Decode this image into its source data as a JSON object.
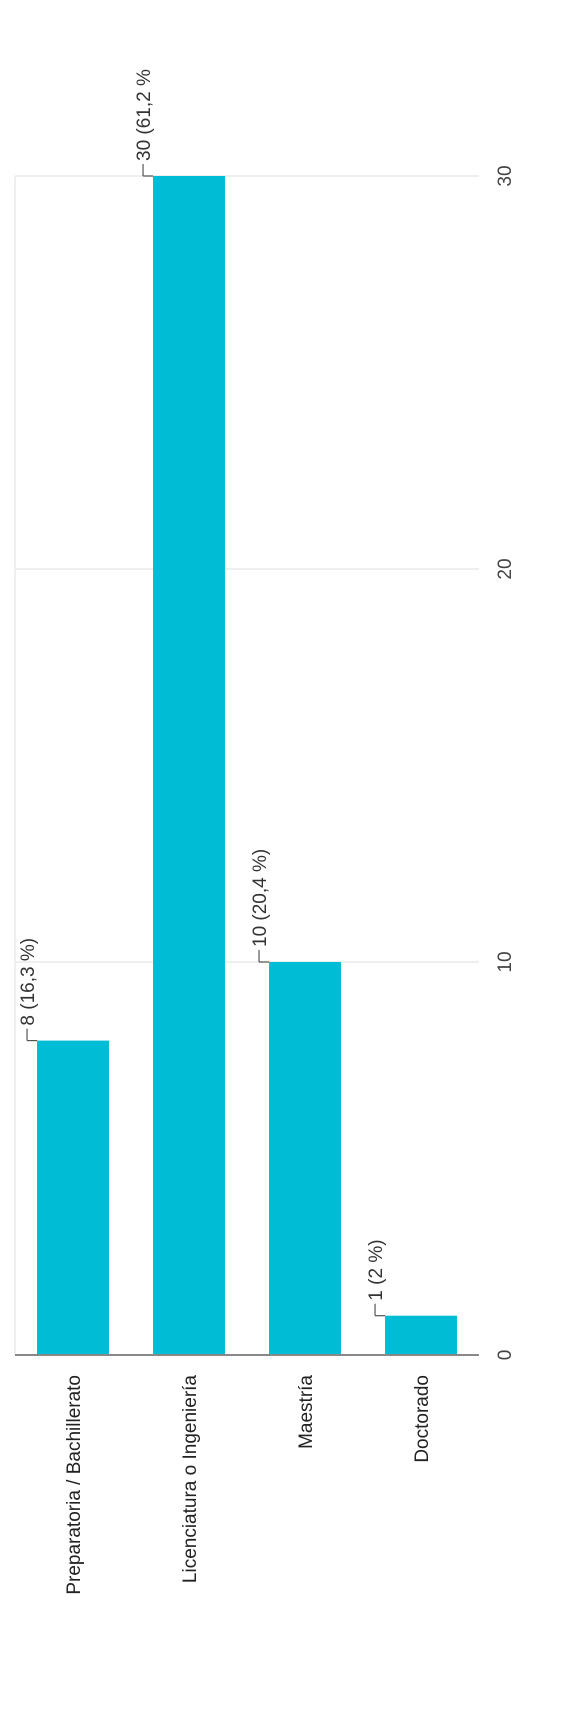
{
  "chart_data": {
    "type": "bar",
    "orientation": "horizontal",
    "categories": [
      "Preparatoria / Bachillerato",
      "Licenciatura o Ingeniería",
      "Maestría",
      "Doctorado"
    ],
    "values": [
      8,
      30,
      10,
      1
    ],
    "data_labels": [
      "8 (16,3 %)",
      "30 (61,2 %",
      "10 (20,4 %)",
      "1 (2 %)"
    ],
    "xlim": [
      0,
      30
    ],
    "ticks": [
      0,
      10,
      20,
      30
    ],
    "tick_labels": [
      "0",
      "10",
      "20",
      "30"
    ],
    "grid": true,
    "bar_color": "#00BCD4",
    "grid_color": "#EAEAEA",
    "axis_color": "#888888"
  }
}
